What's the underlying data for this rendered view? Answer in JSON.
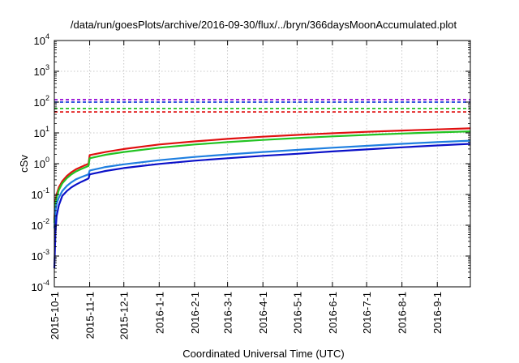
{
  "chart_data": {
    "type": "line",
    "title": "/data/run/goesPlots/archive/2016-09-30/flux/../bryn/366daysMoonAccumulated.plot",
    "xlabel": "Coordinated Universal Time (UTC)",
    "ylabel": "cSv",
    "yscale": "log",
    "ylim": [
      0.0001,
      10000
    ],
    "xlim": [
      "2015-10-01",
      "2016-09-30"
    ],
    "grid": true,
    "legend": "none",
    "xticks": [
      "2015-10-1",
      "2015-11-1",
      "2015-12-1",
      "2016-1-1",
      "2016-2-1",
      "2016-3-1",
      "2016-4-1",
      "2016-5-1",
      "2016-6-1",
      "2016-7-1",
      "2016-8-1",
      "2016-9-1"
    ],
    "xtick_dates": [
      "2015-10-01",
      "2015-11-01",
      "2015-12-01",
      "2016-01-01",
      "2016-02-01",
      "2016-03-01",
      "2016-04-01",
      "2016-05-01",
      "2016-06-01",
      "2016-07-01",
      "2016-08-01",
      "2016-09-01"
    ],
    "yticks": [
      {
        "value": 0.0001,
        "base": "10",
        "exp": "-4"
      },
      {
        "value": 0.001,
        "base": "10",
        "exp": "-3"
      },
      {
        "value": 0.01,
        "base": "10",
        "exp": "-2"
      },
      {
        "value": 0.1,
        "base": "10",
        "exp": "-1"
      },
      {
        "value": 1,
        "base": "10",
        "exp": "0"
      },
      {
        "value": 10,
        "base": "10",
        "exp": "1"
      },
      {
        "value": 100,
        "base": "10",
        "exp": "2"
      },
      {
        "value": 1000,
        "base": "10",
        "exp": "3"
      },
      {
        "value": 10000,
        "base": "10",
        "exp": "4"
      }
    ],
    "hlines": [
      {
        "value": 120,
        "color": "#9400d3",
        "style": "dashed"
      },
      {
        "value": 100,
        "color": "#1f3fdc",
        "style": "dashed"
      },
      {
        "value": 62,
        "color": "#22c322",
        "style": "dashed"
      },
      {
        "value": 48,
        "color": "#e01010",
        "style": "dashed"
      }
    ],
    "series": [
      {
        "color": "#e01010",
        "x": [
          "2015-10-01",
          "2015-10-02",
          "2015-10-03",
          "2015-10-05",
          "2015-10-08",
          "2015-10-12",
          "2015-10-16",
          "2015-10-20",
          "2015-10-25",
          "2015-10-31",
          "2015-11-01",
          "2015-11-15",
          "2015-12-01",
          "2016-01-01",
          "2016-02-01",
          "2016-03-01",
          "2016-04-01",
          "2016-05-01",
          "2016-06-01",
          "2016-07-01",
          "2016-08-01",
          "2016-09-01",
          "2016-09-30"
        ],
        "y": [
          0.015,
          0.06,
          0.1,
          0.17,
          0.27,
          0.4,
          0.53,
          0.66,
          0.8,
          1.0,
          1.9,
          2.4,
          3.0,
          4.2,
          5.3,
          6.4,
          7.5,
          8.6,
          9.7,
          10.8,
          11.9,
          13.0,
          14.0
        ]
      },
      {
        "color": "#22c322",
        "x": [
          "2015-10-01",
          "2015-10-02",
          "2015-10-03",
          "2015-10-05",
          "2015-10-08",
          "2015-10-12",
          "2015-10-16",
          "2015-10-20",
          "2015-10-25",
          "2015-10-31",
          "2015-11-01",
          "2015-11-15",
          "2015-12-01",
          "2016-01-01",
          "2016-02-01",
          "2016-03-01",
          "2016-04-01",
          "2016-05-01",
          "2016-06-01",
          "2016-07-01",
          "2016-08-01",
          "2016-09-01",
          "2016-09-30"
        ],
        "y": [
          0.012,
          0.05,
          0.08,
          0.14,
          0.23,
          0.34,
          0.45,
          0.56,
          0.68,
          0.85,
          1.5,
          1.95,
          2.4,
          3.3,
          4.2,
          5.0,
          5.9,
          6.8,
          7.7,
          8.6,
          9.5,
          10.4,
          11.2
        ]
      },
      {
        "color": "#1f7fe0",
        "x": [
          "2015-10-01",
          "2015-10-02",
          "2015-10-03",
          "2015-10-05",
          "2015-10-08",
          "2015-10-12",
          "2015-10-16",
          "2015-10-20",
          "2015-10-25",
          "2015-10-31",
          "2015-11-01",
          "2015-11-15",
          "2015-12-01",
          "2016-01-01",
          "2016-02-01",
          "2016-03-01",
          "2016-04-01",
          "2016-05-01",
          "2016-06-01",
          "2016-07-01",
          "2016-08-01",
          "2016-09-01",
          "2016-09-30"
        ],
        "y": [
          0.008,
          0.03,
          0.05,
          0.08,
          0.13,
          0.19,
          0.25,
          0.31,
          0.37,
          0.45,
          0.6,
          0.78,
          0.95,
          1.3,
          1.65,
          2.0,
          2.4,
          2.8,
          3.3,
          3.8,
          4.4,
          5.0,
          5.6
        ]
      },
      {
        "color": "#0a10c8",
        "x": [
          "2015-10-01",
          "2015-10-02",
          "2015-10-03",
          "2015-10-05",
          "2015-10-08",
          "2015-10-12",
          "2015-10-16",
          "2015-10-20",
          "2015-10-25",
          "2015-10-31",
          "2015-11-01",
          "2015-11-15",
          "2015-12-01",
          "2016-01-01",
          "2016-02-01",
          "2016-03-01",
          "2016-04-01",
          "2016-05-01",
          "2016-06-01",
          "2016-07-01",
          "2016-08-01",
          "2016-09-01",
          "2016-09-30"
        ],
        "y": [
          0.0004,
          0.006,
          0.02,
          0.045,
          0.09,
          0.13,
          0.17,
          0.21,
          0.26,
          0.33,
          0.45,
          0.58,
          0.72,
          0.98,
          1.25,
          1.5,
          1.8,
          2.1,
          2.5,
          2.9,
          3.4,
          3.9,
          4.4
        ]
      }
    ]
  }
}
